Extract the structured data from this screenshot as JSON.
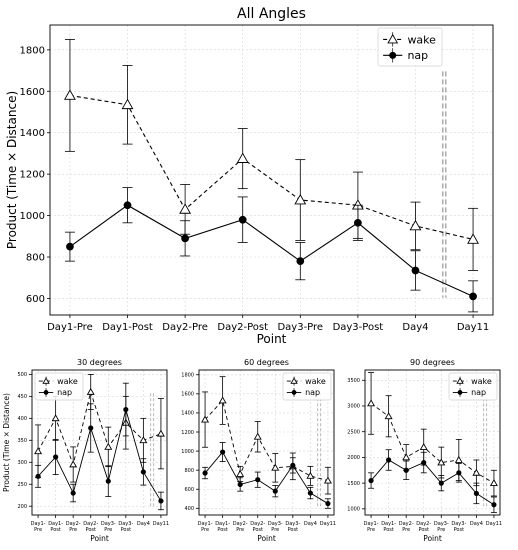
{
  "chart_data": [
    {
      "type": "line",
      "title": "All Angles",
      "xlabel": "Point",
      "ylabel": "Product (Time × Distance)",
      "categories": [
        "Day1-Pre",
        "Day1-Post",
        "Day2-Pre",
        "Day2-Post",
        "Day3-Pre",
        "Day3-Post",
        "Day4",
        "Day11"
      ],
      "ylim": [
        520,
        1920
      ],
      "yticks": [
        600,
        800,
        1000,
        1200,
        1400,
        1600,
        1800
      ],
      "grid": true,
      "legend": "top-right",
      "separator_between": [
        6,
        7
      ],
      "series": [
        {
          "name": "wake",
          "marker": "triangle",
          "dash": "4,3",
          "values": [
            1580,
            1535,
            1030,
            1275,
            1075,
            1050,
            950,
            885
          ],
          "errors": [
            270,
            190,
            120,
            145,
            195,
            160,
            115,
            150
          ]
        },
        {
          "name": "nap",
          "marker": "circle",
          "dash": "",
          "values": [
            850,
            1050,
            890,
            980,
            780,
            965,
            735,
            610
          ],
          "errors": [
            70,
            85,
            85,
            110,
            90,
            85,
            95,
            75
          ]
        }
      ]
    },
    {
      "type": "line",
      "title": "30 degrees",
      "xlabel": "Point",
      "ylabel": "Product (Time × Distance)",
      "categories": [
        "Day1-\nPre",
        "Day1-\nPost",
        "Day2-\nPre",
        "Day2-\nPost",
        "Day3-\nPre",
        "Day3-\nPost",
        "Day4",
        "Day11"
      ],
      "ylim": [
        180,
        510
      ],
      "yticks": [
        200,
        250,
        300,
        350,
        400,
        450,
        500
      ],
      "grid": true,
      "legend": "top-left",
      "separator_between": [
        6,
        7
      ],
      "series": [
        {
          "name": "wake",
          "marker": "triangle",
          "dash": "4,3",
          "values": [
            325,
            400,
            295,
            460,
            335,
            390,
            350,
            365
          ],
          "errors": [
            60,
            50,
            40,
            40,
            45,
            60,
            50,
            80
          ]
        },
        {
          "name": "nap",
          "marker": "circle",
          "dash": "",
          "values": [
            268,
            312,
            230,
            378,
            257,
            420,
            278,
            212
          ],
          "errors": [
            25,
            40,
            20,
            55,
            35,
            60,
            30,
            20
          ]
        }
      ]
    },
    {
      "type": "line",
      "title": "60 degrees",
      "xlabel": "Point",
      "ylabel": "",
      "categories": [
        "Day1-\nPre",
        "Day1-\nPost",
        "Day2-\nPre",
        "Day2-\nPost",
        "Day3-\nPre",
        "Day3-\nPost",
        "Day4",
        "Day11"
      ],
      "ylim": [
        330,
        1850
      ],
      "yticks": [
        400,
        600,
        800,
        1000,
        1200,
        1400,
        1600,
        1800
      ],
      "grid": true,
      "legend": "top-right",
      "separator_between": [
        6,
        7
      ],
      "series": [
        {
          "name": "wake",
          "marker": "triangle",
          "dash": "4,3",
          "values": [
            1330,
            1530,
            760,
            1150,
            825,
            840,
            740,
            690
          ],
          "errors": [
            290,
            250,
            80,
            160,
            150,
            140,
            100,
            140
          ]
        },
        {
          "name": "nap",
          "marker": "circle",
          "dash": "",
          "values": [
            770,
            990,
            650,
            700,
            580,
            850,
            560,
            450
          ],
          "errors": [
            60,
            100,
            70,
            80,
            60,
            80,
            60,
            50
          ]
        }
      ]
    },
    {
      "type": "line",
      "title": "90 degrees",
      "xlabel": "Point",
      "ylabel": "",
      "categories": [
        "Day1-\nPre",
        "Day1-\nPost",
        "Day2-\nPre",
        "Day2-\nPost",
        "Day3-\nPre",
        "Day3-\nPost",
        "Day4",
        "Day11"
      ],
      "ylim": [
        880,
        3700
      ],
      "yticks": [
        1000,
        1500,
        2000,
        2500,
        3000,
        3500
      ],
      "grid": true,
      "legend": "top-right",
      "separator_between": [
        6,
        7
      ],
      "series": [
        {
          "name": "wake",
          "marker": "triangle",
          "dash": "4,3",
          "values": [
            3050,
            2800,
            2000,
            2200,
            1900,
            1950,
            1700,
            1500
          ],
          "errors": [
            600,
            400,
            250,
            350,
            300,
            400,
            250,
            250
          ]
        },
        {
          "name": "nap",
          "marker": "circle",
          "dash": "",
          "values": [
            1550,
            1950,
            1750,
            1900,
            1500,
            1700,
            1300,
            1080
          ],
          "errors": [
            150,
            200,
            180,
            200,
            150,
            180,
            200,
            150
          ]
        }
      ]
    }
  ]
}
